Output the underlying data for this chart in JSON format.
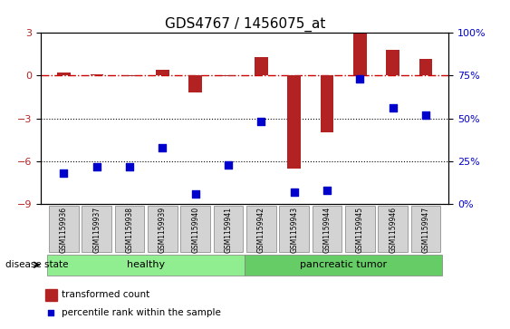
{
  "title": "GDS4767 / 1456075_at",
  "samples": [
    "GSM1159936",
    "GSM1159937",
    "GSM1159938",
    "GSM1159939",
    "GSM1159940",
    "GSM1159941",
    "GSM1159942",
    "GSM1159943",
    "GSM1159944",
    "GSM1159945",
    "GSM1159946",
    "GSM1159947"
  ],
  "transformed_count": [
    0.2,
    0.1,
    -0.05,
    0.4,
    -1.2,
    -0.05,
    1.3,
    -6.5,
    -4.0,
    3.0,
    1.8,
    1.2
  ],
  "percentile_rank": [
    18,
    22,
    22,
    33,
    6,
    23,
    48,
    7,
    8,
    73,
    56,
    52
  ],
  "groups": [
    "healthy",
    "healthy",
    "healthy",
    "healthy",
    "healthy",
    "healthy",
    "pancreatic tumor",
    "pancreatic tumor",
    "pancreatic tumor",
    "pancreatic tumor",
    "pancreatic tumor",
    "pancreatic tumor"
  ],
  "left_ylim": [
    -9,
    3
  ],
  "right_ylim": [
    0,
    100
  ],
  "left_yticks": [
    -9,
    -6,
    -3,
    0,
    3
  ],
  "right_yticks": [
    0,
    25,
    50,
    75,
    100
  ],
  "bar_color": "#b22222",
  "scatter_color": "#0000cc",
  "hline_color": "#cc0000",
  "dotted_line_color": "#000000",
  "healthy_color": "#90ee90",
  "tumor_color": "#66cc66",
  "bg_color": "#d3d3d3",
  "bar_width": 0.4,
  "scatter_size": 30
}
